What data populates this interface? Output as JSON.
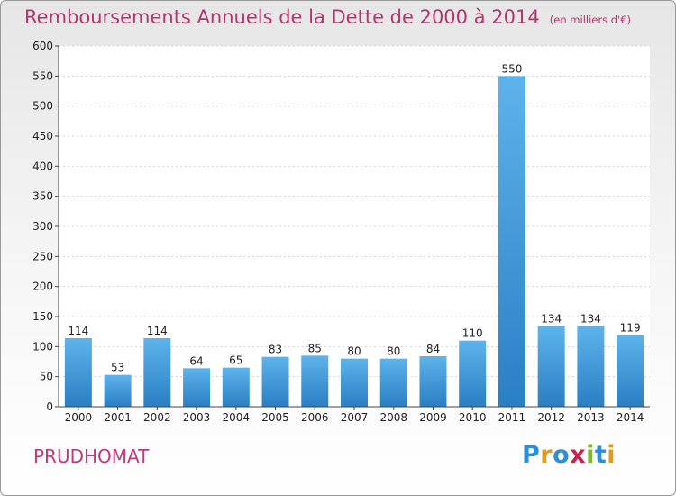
{
  "header": {
    "title": "Remboursements Annuels de la Dette de 2000 à 2014",
    "subtitle": "(en milliers d'€)"
  },
  "footer": {
    "city": "PRUDHOMAT",
    "logo_letters": [
      "P",
      "r",
      "o",
      "x",
      "i",
      "t",
      "i"
    ],
    "logo_colors": [
      "#2f8fd6",
      "#e39a1e",
      "#2f8fd6",
      "#c8234f",
      "#7cb82f",
      "#2f8fd6",
      "#e39a1e"
    ]
  },
  "colors": {
    "title": "#b5356b",
    "bar_top": "#5db3ea",
    "bar_bottom": "#2a7fc4"
  },
  "chart_data": {
    "type": "bar",
    "categories": [
      "2000",
      "2001",
      "2002",
      "2003",
      "2004",
      "2005",
      "2006",
      "2007",
      "2008",
      "2009",
      "2010",
      "2011",
      "2012",
      "2013",
      "2014"
    ],
    "values": [
      114,
      53,
      114,
      64,
      65,
      83,
      85,
      80,
      80,
      84,
      110,
      550,
      134,
      134,
      119
    ],
    "data_labels": [
      "114",
      "53",
      "114",
      "64",
      "65",
      "83",
      "85",
      "80",
      "80",
      "84",
      "110",
      "550",
      "134",
      "134",
      "119"
    ],
    "yticks": [
      0,
      50,
      100,
      150,
      200,
      250,
      300,
      350,
      400,
      450,
      500,
      550,
      600
    ],
    "ylim": [
      0,
      600
    ],
    "grid": true,
    "legend": "none"
  }
}
